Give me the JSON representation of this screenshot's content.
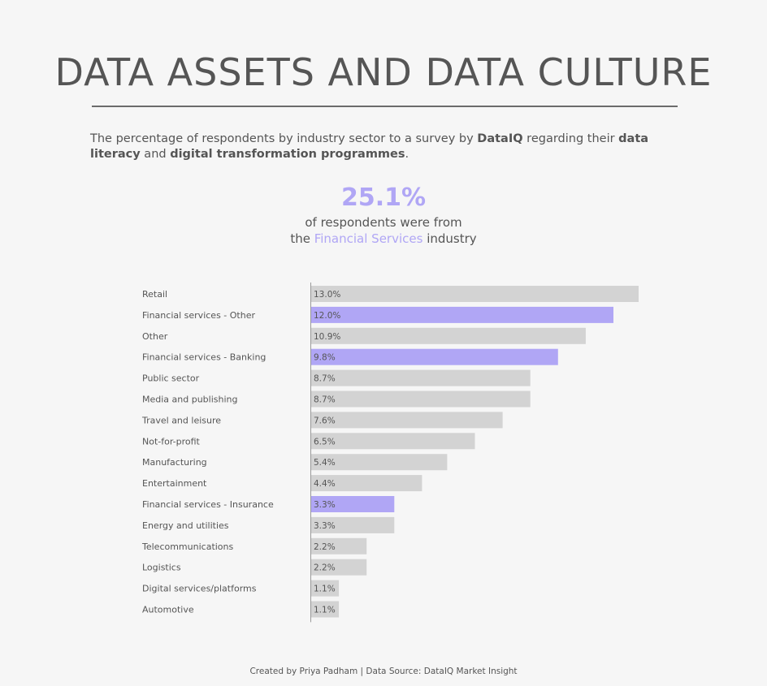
{
  "header": {
    "title": "DATA ASSETS AND DATA CULTURE",
    "subtitle_parts": [
      {
        "text": "The percentage of respondents by industry sector to a survey by ",
        "bold": false
      },
      {
        "text": "DataIQ",
        "bold": true
      },
      {
        "text": " regarding their ",
        "bold": false
      },
      {
        "text": "data literacy",
        "bold": true
      },
      {
        "text": " and ",
        "bold": false
      },
      {
        "text": "digital transformation programmes",
        "bold": true
      },
      {
        "text": ".",
        "bold": false
      }
    ]
  },
  "kpi": {
    "value": "25.1%",
    "line1": "of respondents were from",
    "line2_prefix": "the ",
    "line2_highlight": "Financial Services",
    "line2_suffix": " industry"
  },
  "colors": {
    "accent": "#b0a6f5",
    "bar_default": "#d3d3d3",
    "bar_highlight": "#b0a6f5",
    "text": "#555555"
  },
  "chart_data": {
    "type": "bar",
    "orientation": "horizontal",
    "categories": [
      "Retail",
      "Financial services - Other",
      "Other",
      "Financial services - Banking",
      "Public sector",
      "Media and publishing",
      "Travel and leisure",
      "Not-for-profit",
      "Manufacturing",
      "Entertainment",
      "Financial services - Insurance",
      "Energy and utilities",
      "Telecommunications",
      "Logistics",
      "Digital services/platforms",
      "Automotive"
    ],
    "values": [
      13.0,
      12.0,
      10.9,
      9.8,
      8.7,
      8.7,
      7.6,
      6.5,
      5.4,
      4.4,
      3.3,
      3.3,
      2.2,
      2.2,
      1.1,
      1.1
    ],
    "value_labels": [
      "13.0%",
      "12.0%",
      "10.9%",
      "9.8%",
      "8.7%",
      "8.7%",
      "7.6%",
      "6.5%",
      "5.4%",
      "4.4%",
      "3.3%",
      "3.3%",
      "2.2%",
      "2.2%",
      "1.1%",
      "1.1%"
    ],
    "highlighted": [
      false,
      true,
      false,
      true,
      false,
      false,
      false,
      false,
      false,
      false,
      true,
      false,
      false,
      false,
      false,
      false
    ],
    "xlim": [
      0,
      13.0
    ],
    "grid": false,
    "legend": "none"
  },
  "footer": {
    "text": "Created by Priya Padham | Data Source: DataIQ Market Insight"
  }
}
